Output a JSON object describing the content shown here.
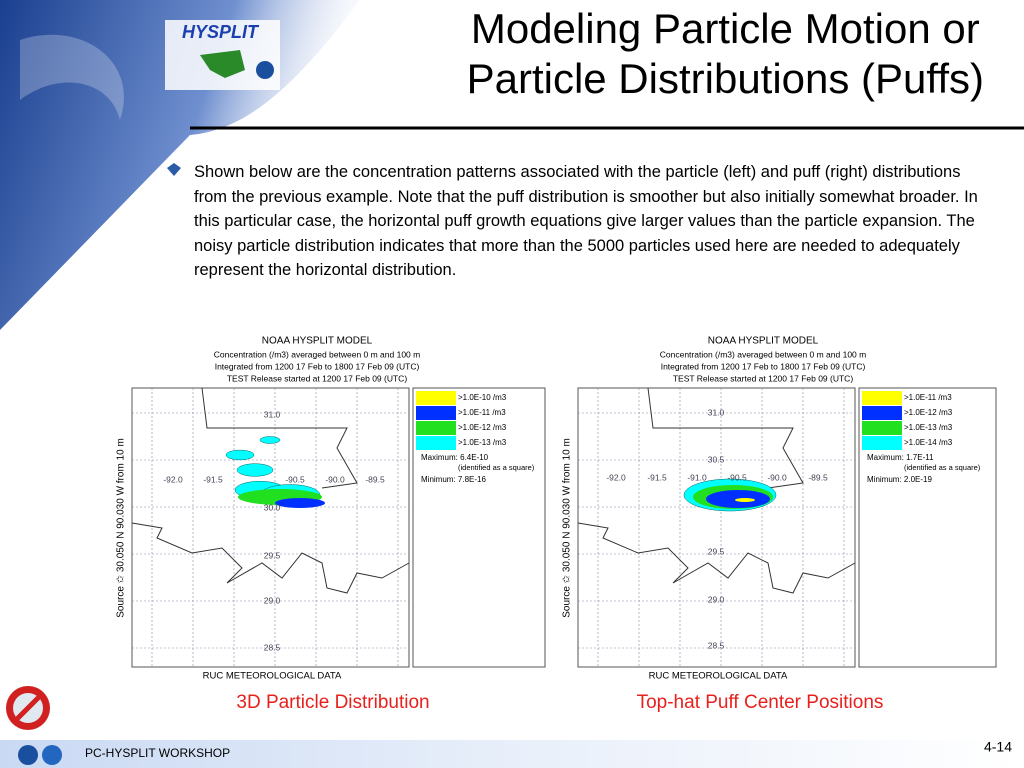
{
  "header": {
    "logo": "HYSPLIT",
    "title": [
      "Modeling Particle Motion or",
      "Particle Distributions (Puffs)"
    ]
  },
  "bullet": "Shown below are the concentration patterns associated with the particle (left) and puff (right) distributions from the previous example.  Note that the puff distribution is smoother but also initially somewhat broader.  In this particular case, the horizontal puff growth equations give larger values than the particle expansion. The noisy particle distribution indicates that more than the 5000 particles used here are needed to adequately represent the horizontal distribution.",
  "panels": [
    {
      "model": "NOAA HYSPLIT MODEL",
      "lines": [
        "Concentration  (/m3) averaged between     0 m and   100 m",
        "Integrated from 1200 17 Feb to 1800 17 Feb 09 (UTC)",
        "TEST Release started at 1200 17 Feb 09 (UTC)"
      ],
      "side_label": "Source ✩ 30.050  N  90.030  W          from    10 m",
      "legend": [
        ">1.0E-10 /m3",
        ">1.0E-11 /m3",
        ">1.0E-12 /m3",
        ">1.0E-13 /m3"
      ],
      "maximum": "Maximum: 6.4E-10",
      "square_note": "(identified as a square)",
      "minimum": "Minimum: 7.8E-16",
      "lat_labels": [
        "31.0",
        "30.0",
        "29.5",
        "29.0",
        "28.5"
      ],
      "lon_labels": [
        "-92.0",
        "-91.5",
        "-90.5",
        "-90.0",
        "-89.5"
      ],
      "footer": "RUC METEOROLOGICAL DATA",
      "caption": "3D Particle Distribution"
    },
    {
      "model": "NOAA HYSPLIT MODEL",
      "lines": [
        "Concentration  (/m3) averaged between     0 m and   100 m",
        "Integrated from 1200 17 Feb to 1800 17 Feb 09 (UTC)",
        "TEST Release started at 1200 17 Feb 09 (UTC)"
      ],
      "side_label": "Source ✩ 30.050  N  90.030  W          from    10 m",
      "legend": [
        ">1.0E-11 /m3",
        ">1.0E-12 /m3",
        ">1.0E-13 /m3",
        ">1.0E-14 /m3"
      ],
      "maximum": "Maximum: 1.7E-11",
      "square_note": "(identified as a square)",
      "minimum": "Minimum: 2.0E-19",
      "lat_labels": [
        "31.0",
        "30.5",
        "29.5",
        "29.0",
        "28.5"
      ],
      "lon_labels": [
        "-92.0",
        "-91.5",
        "-91.0",
        "-90.5",
        "-90.0",
        "-89.5"
      ],
      "footer": "RUC METEOROLOGICAL DATA",
      "caption": "Top-hat Puff Center Positions"
    }
  ],
  "footer": {
    "workshop": "PC-HYSPLIT WORKSHOP",
    "page": "4-14"
  }
}
